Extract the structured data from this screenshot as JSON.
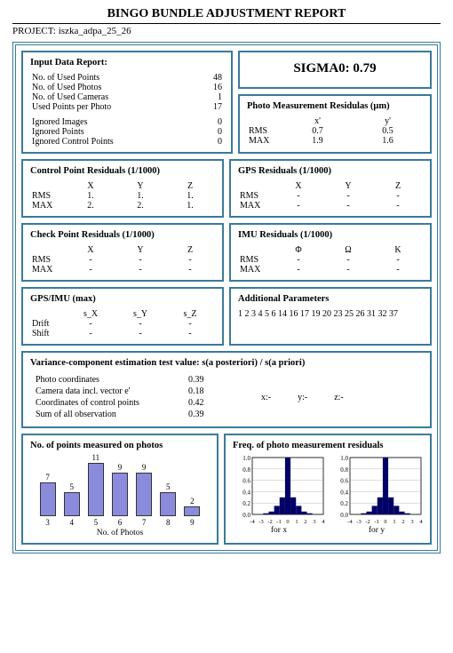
{
  "title": "BINGO BUNDLE ADJUSTMENT REPORT",
  "project_label": "PROJECT:",
  "project_name": "iszka_adpa_25_26",
  "colors": {
    "border": "#3a7a9c",
    "bar_fill": "#8b8bdc",
    "bar_stroke": "#333333",
    "freq_bar": "#000066",
    "axis": "#000000",
    "grid": "#bfbfbf"
  },
  "input_data": {
    "heading": "Input Data Report:",
    "rows1": [
      {
        "label": "No. of Used Points",
        "value": "48"
      },
      {
        "label": "No. of Used Photos",
        "value": "16"
      },
      {
        "label": "No. of Used Cameras",
        "value": "1"
      },
      {
        "label": "Used Points per Photo",
        "value": "17"
      }
    ],
    "rows2": [
      {
        "label": "Ignored Images",
        "value": "0"
      },
      {
        "label": "Ignored Points",
        "value": "0"
      },
      {
        "label": "Ignored Control Points",
        "value": "0"
      }
    ]
  },
  "sigma0": {
    "label": "SIGMA0:",
    "value": "0.79"
  },
  "photo_meas": {
    "heading": "Photo Measurement Residulas (μm)",
    "cols": [
      "x'",
      "y'"
    ],
    "rows": [
      {
        "label": "RMS",
        "vals": [
          "0.7",
          "0.5"
        ]
      },
      {
        "label": "MAX",
        "vals": [
          "1.9",
          "1.6"
        ]
      }
    ]
  },
  "control_res": {
    "heading": "Control Point Residuals (1/1000)",
    "cols": [
      "X",
      "Y",
      "Z"
    ],
    "rows": [
      {
        "label": "RMS",
        "vals": [
          "1.",
          "1.",
          "1."
        ]
      },
      {
        "label": "MAX",
        "vals": [
          "2.",
          "2.",
          "1."
        ]
      }
    ]
  },
  "gps_res": {
    "heading": "GPS Residuals (1/1000)",
    "cols": [
      "X",
      "Y",
      "Z"
    ],
    "rows": [
      {
        "label": "RMS",
        "vals": [
          "-",
          "-",
          "-"
        ]
      },
      {
        "label": "MAX",
        "vals": [
          "-",
          "-",
          "-"
        ]
      }
    ]
  },
  "check_res": {
    "heading": "Check Point Residuals (1/1000)",
    "cols": [
      "X",
      "Y",
      "Z"
    ],
    "rows": [
      {
        "label": "RMS",
        "vals": [
          "-",
          "-",
          "-"
        ]
      },
      {
        "label": "MAX",
        "vals": [
          "-",
          "-",
          "-"
        ]
      }
    ]
  },
  "imu_res": {
    "heading": "IMU Residuals (1/1000)",
    "cols": [
      "Φ",
      "Ω",
      "K"
    ],
    "rows": [
      {
        "label": "RMS",
        "vals": [
          "-",
          "-",
          "-"
        ]
      },
      {
        "label": "MAX",
        "vals": [
          "-",
          "-",
          "-"
        ]
      }
    ]
  },
  "gps_imu_max": {
    "heading": "GPS/IMU (max)",
    "cols": [
      "s_X",
      "s_Y",
      "s_Z"
    ],
    "rows": [
      {
        "label": "Drift",
        "vals": [
          "-",
          "-",
          "-"
        ]
      },
      {
        "label": "Shift",
        "vals": [
          "-",
          "-",
          "-"
        ]
      }
    ]
  },
  "add_params": {
    "heading": "Additional Parameters",
    "list": "1 2 3 4 5 6 14 16 17 19 20 23 25 26 31 32 37"
  },
  "var_comp": {
    "heading": "Variance-component estimation test value: s(a posteriori) / s(a priori)",
    "rows": [
      {
        "label": "Photo coordinates",
        "value": "0.39"
      },
      {
        "label": "Camera data incl. vector e'",
        "value": "0.18"
      },
      {
        "label": "Coordinates of control points",
        "value": "0.42"
      },
      {
        "label": "Sum of all observation",
        "value": "0.39"
      }
    ],
    "xyz": {
      "x": "x:-",
      "y": "y:-",
      "z": "z:-"
    }
  },
  "bar_chart": {
    "heading": "No. of points measured on photos",
    "xlabel": "No. of Photos",
    "ymax": 11,
    "bars": [
      {
        "x": "3",
        "v": 7
      },
      {
        "x": "4",
        "v": 5
      },
      {
        "x": "5",
        "v": 11
      },
      {
        "x": "6",
        "v": 9
      },
      {
        "x": "7",
        "v": 9
      },
      {
        "x": "8",
        "v": 5
      },
      {
        "x": "9",
        "v": 2
      }
    ]
  },
  "freq_chart": {
    "heading": "Freq. of photo measurement residuals",
    "yticks": [
      "1.0",
      "0.8",
      "0.6",
      "0.4",
      "0.2",
      "0.0"
    ],
    "xticks": [
      "-4",
      "-3",
      "-2",
      "-1",
      "0",
      "1",
      "2",
      "3",
      "4"
    ],
    "sub": [
      {
        "label": "for x",
        "bars": [
          0,
          0,
          0.02,
          0.05,
          0.15,
          0.3,
          1.0,
          0.3,
          0.15,
          0.05,
          0.02,
          0,
          0
        ]
      },
      {
        "label": "for y",
        "bars": [
          0,
          0,
          0.02,
          0.05,
          0.15,
          0.3,
          1.0,
          0.3,
          0.15,
          0.05,
          0.02,
          0,
          0
        ]
      }
    ]
  }
}
